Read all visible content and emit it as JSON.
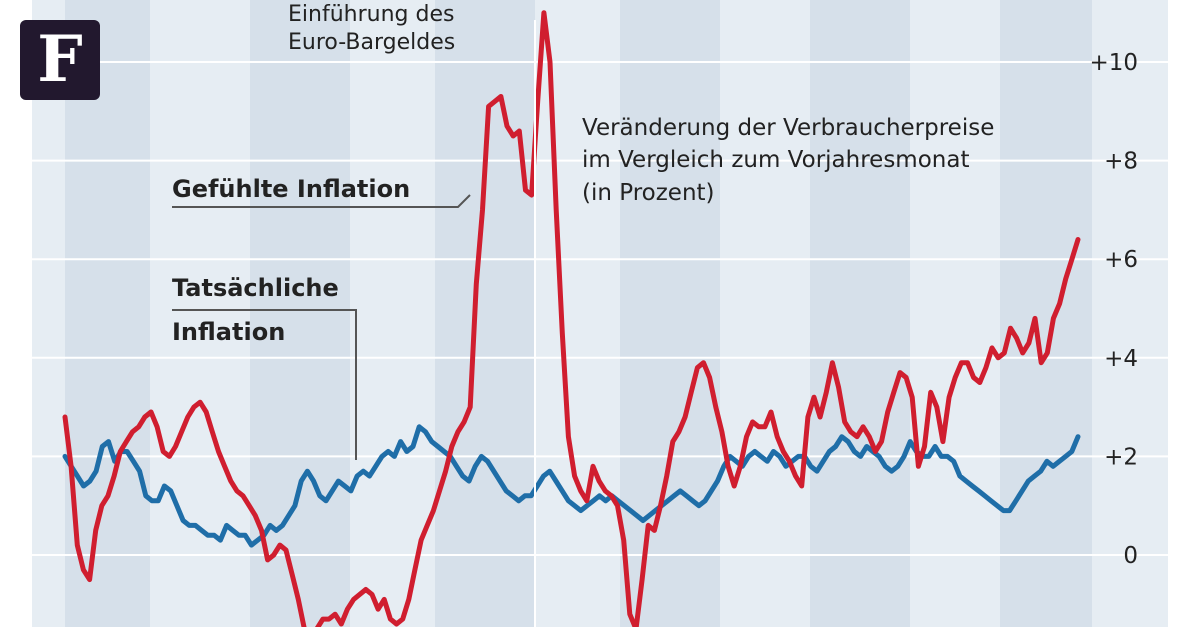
{
  "logo": {
    "letter": "F",
    "icon": "faz-logo-icon"
  },
  "annotations": {
    "euro_line1": "Einführung des",
    "euro_line2": "Euro-Bargeldes",
    "subtitle_line1": "Veränderung der Verbraucherpreise",
    "subtitle_line2": "im Vergleich zum Vorjahresmonat",
    "subtitle_line3": "(in Prozent)",
    "felt_label": "Gefühlte Inflation",
    "actual_line1": "Tatsächliche",
    "actual_line2": "Inflation"
  },
  "colors": {
    "felt": "#d01e2f",
    "actual": "#1f6ea8",
    "band_light": "#e6edf3",
    "band_dark": "#d6e0ea",
    "grid": "#ffffff",
    "logo_bg": "#22182e"
  },
  "chart_data": {
    "type": "line",
    "x": "monthly, approx. 1996–2008",
    "yaxis": {
      "ticks": [
        {
          "value": 10,
          "label": "+10"
        },
        {
          "value": 8,
          "label": "+8"
        },
        {
          "value": 6,
          "label": "+6"
        },
        {
          "value": 4,
          "label": "+4"
        },
        {
          "value": 2,
          "label": "+2"
        },
        {
          "value": 0,
          "label": "0"
        }
      ],
      "visible_range": [
        -1.5,
        11.2
      ],
      "side": "right"
    },
    "grid": true,
    "series": [
      {
        "name": "Gefühlte Inflation",
        "values": [
          2.8,
          1.8,
          0.2,
          -0.3,
          -0.5,
          0.5,
          1.0,
          1.2,
          1.6,
          2.1,
          2.3,
          2.5,
          2.6,
          2.8,
          2.9,
          2.6,
          2.1,
          2.0,
          2.2,
          2.5,
          2.8,
          3.0,
          3.1,
          2.9,
          2.5,
          2.1,
          1.8,
          1.5,
          1.3,
          1.2,
          1.0,
          0.8,
          0.5,
          -0.1,
          0.0,
          0.2,
          0.1,
          -0.4,
          -0.9,
          -1.5,
          -1.6,
          -1.5,
          -1.3,
          -1.3,
          -1.2,
          -1.4,
          -1.1,
          -0.9,
          -0.8,
          -0.7,
          -0.8,
          -1.1,
          -0.9,
          -1.3,
          -1.4,
          -1.3,
          -0.9,
          -0.3,
          0.3,
          0.6,
          0.9,
          1.3,
          1.7,
          2.2,
          2.5,
          2.7,
          3.0,
          5.5,
          7.0,
          9.1,
          9.2,
          9.3,
          8.7,
          8.5,
          8.6,
          7.4,
          7.3,
          9.2,
          11.0,
          10.0,
          7.0,
          4.5,
          2.4,
          1.6,
          1.3,
          1.1,
          1.8,
          1.5,
          1.3,
          1.2,
          1.0,
          0.3,
          -1.2,
          -1.5,
          -0.5,
          0.6,
          0.5,
          1.0,
          1.6,
          2.3,
          2.5,
          2.8,
          3.3,
          3.8,
          3.9,
          3.6,
          3.0,
          2.5,
          1.8,
          1.4,
          1.8,
          2.4,
          2.7,
          2.6,
          2.6,
          2.9,
          2.4,
          2.1,
          1.9,
          1.6,
          1.4,
          2.8,
          3.2,
          2.8,
          3.3,
          3.9,
          3.4,
          2.7,
          2.5,
          2.4,
          2.6,
          2.4,
          2.1,
          2.3,
          2.9,
          3.3,
          3.7,
          3.6,
          3.2,
          1.8,
          2.2,
          3.3,
          3.0,
          2.3,
          3.2,
          3.6,
          3.9,
          3.9,
          3.6,
          3.5,
          3.8,
          4.2,
          4.0,
          4.1,
          4.6,
          4.4,
          4.1,
          4.3,
          4.8,
          3.9,
          4.1,
          4.8,
          5.1,
          5.6,
          6.0,
          6.4
        ]
      },
      {
        "name": "Tatsächliche Inflation",
        "values": [
          2.0,
          1.8,
          1.6,
          1.4,
          1.5,
          1.7,
          2.2,
          2.3,
          1.9,
          2.1,
          2.1,
          1.9,
          1.7,
          1.2,
          1.1,
          1.1,
          1.4,
          1.3,
          1.0,
          0.7,
          0.6,
          0.6,
          0.5,
          0.4,
          0.4,
          0.3,
          0.6,
          0.5,
          0.4,
          0.4,
          0.2,
          0.3,
          0.4,
          0.6,
          0.5,
          0.6,
          0.8,
          1.0,
          1.5,
          1.7,
          1.5,
          1.2,
          1.1,
          1.3,
          1.5,
          1.4,
          1.3,
          1.6,
          1.7,
          1.6,
          1.8,
          2.0,
          2.1,
          2.0,
          2.3,
          2.1,
          2.2,
          2.6,
          2.5,
          2.3,
          2.2,
          2.1,
          2.0,
          1.8,
          1.6,
          1.5,
          1.8,
          2.0,
          1.9,
          1.7,
          1.5,
          1.3,
          1.2,
          1.1,
          1.2,
          1.2,
          1.4,
          1.6,
          1.7,
          1.5,
          1.3,
          1.1,
          1.0,
          0.9,
          1.0,
          1.1,
          1.2,
          1.1,
          1.2,
          1.1,
          1.0,
          0.9,
          0.8,
          0.7,
          0.8,
          0.9,
          1.0,
          1.1,
          1.2,
          1.3,
          1.2,
          1.1,
          1.0,
          1.1,
          1.3,
          1.5,
          1.8,
          2.0,
          1.9,
          1.8,
          2.0,
          2.1,
          2.0,
          1.9,
          2.1,
          2.0,
          1.8,
          1.9,
          2.0,
          2.0,
          1.8,
          1.7,
          1.9,
          2.1,
          2.2,
          2.4,
          2.3,
          2.1,
          2.0,
          2.2,
          2.1,
          2.0,
          1.8,
          1.7,
          1.8,
          2.0,
          2.3,
          2.1,
          2.0,
          2.0,
          2.2,
          2.0,
          2.0,
          1.9,
          1.6,
          1.5,
          1.4,
          1.3,
          1.2,
          1.1,
          1.0,
          0.9,
          0.9,
          1.1,
          1.3,
          1.5,
          1.6,
          1.7,
          1.9,
          1.8,
          1.9,
          2.0,
          2.1,
          2.4
        ]
      }
    ]
  }
}
